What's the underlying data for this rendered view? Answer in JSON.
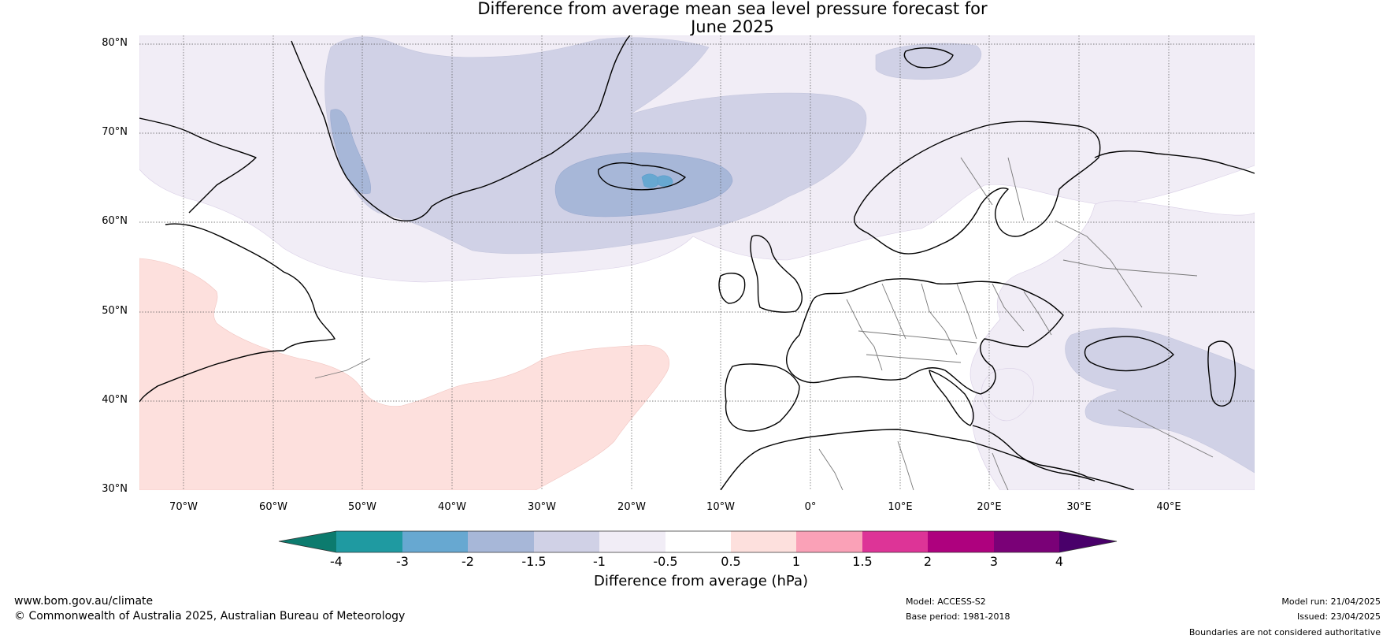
{
  "title": {
    "line1": "Difference from average mean sea level pressure forecast for",
    "line2": "June 2025"
  },
  "axes": {
    "lat_labels": [
      "80°N",
      "70°N",
      "60°N",
      "50°N",
      "40°N",
      "30°N"
    ],
    "lon_labels": [
      "70°W",
      "60°W",
      "50°W",
      "40°W",
      "30°W",
      "20°W",
      "10°W",
      "0°",
      "10°E",
      "20°E",
      "30°E",
      "40°E"
    ]
  },
  "colorbar": {
    "title": "Difference from average (hPa)",
    "ticks": [
      "-4",
      "-3",
      "-2",
      "-1.5",
      "-1",
      "-0.5",
      "0.5",
      "1",
      "1.5",
      "2",
      "3",
      "4"
    ],
    "colors": [
      "#0c7b6e",
      "#1f9aa1",
      "#67a8d1",
      "#a7b7d8",
      "#d0d1e6",
      "#f1edf6",
      "#ffffff",
      "#fde0dd",
      "#faa1b7",
      "#dd3497",
      "#ae017e",
      "#7a0177",
      "#49006a"
    ]
  },
  "anomaly_colors": {
    "neg_0_5": "#f1edf6",
    "neg_1": "#d0d1e6",
    "neg_1_5": "#a7b7d8",
    "neg_2": "#67a8d1",
    "pos_0_5": "#fde0dd"
  },
  "footer": {
    "website": "www.bom.gov.au/climate",
    "copyright": "© Commonwealth of Australia 2025, Australian Bureau of Meteorology",
    "model": "Model: ACCESS-S2",
    "base_period": "Base period: 1981-2018",
    "model_run": "Model run: 21/04/2025",
    "issued": "Issued: 23/04/2025",
    "disclaimer": "Boundaries are not considered authoritative"
  }
}
